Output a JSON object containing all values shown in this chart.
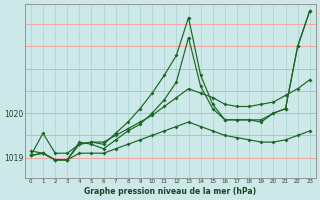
{
  "title": "Graphe pression niveau de la mer (hPa)",
  "bg_color": "#cce8e8",
  "grid_color_v": "#b0d4d4",
  "grid_color_h": "#ff9999",
  "line_color": "#1a6622",
  "xlabel": "Graphe pression niveau de la mer (hPa)",
  "xlim": [
    -0.5,
    23.5
  ],
  "ylim": [
    1018.55,
    1022.45
  ],
  "yticks": [
    1019,
    1020
  ],
  "xticks": [
    0,
    1,
    2,
    3,
    4,
    5,
    6,
    7,
    8,
    9,
    10,
    11,
    12,
    13,
    14,
    15,
    16,
    17,
    18,
    19,
    20,
    21,
    22,
    23
  ],
  "hgrid_vals": [
    1018.5,
    1019.0,
    1019.5,
    1020.0,
    1020.5,
    1021.0,
    1021.5,
    1022.0,
    1022.5
  ],
  "series": [
    [
      1019.05,
      1019.55,
      1019.1,
      1019.1,
      1019.3,
      1019.35,
      1019.35,
      1019.5,
      1019.65,
      1019.8,
      1019.95,
      1020.15,
      1020.35,
      1020.55,
      1020.45,
      1020.35,
      1020.2,
      1020.15,
      1020.15,
      1020.2,
      1020.25,
      1020.4,
      1020.55,
      1020.75
    ],
    [
      1019.05,
      1019.1,
      1018.95,
      1018.95,
      1019.1,
      1019.1,
      1019.1,
      1019.2,
      1019.3,
      1019.4,
      1019.5,
      1019.6,
      1019.7,
      1019.8,
      1019.7,
      1019.6,
      1019.5,
      1019.45,
      1019.4,
      1019.35,
      1019.35,
      1019.4,
      1019.5,
      1019.6
    ],
    [
      1019.05,
      1019.1,
      1018.95,
      1018.95,
      1019.35,
      1019.3,
      1019.2,
      1019.4,
      1019.6,
      1019.75,
      1020.0,
      1020.3,
      1020.7,
      1021.7,
      1020.6,
      1020.1,
      1019.85,
      1019.85,
      1019.85,
      1019.8,
      1020.0,
      1020.1,
      1021.5,
      1022.3
    ],
    [
      1019.15,
      1019.1,
      1018.95,
      1018.95,
      1019.3,
      1019.35,
      1019.3,
      1019.55,
      1019.8,
      1020.1,
      1020.45,
      1020.85,
      1021.3,
      1022.15,
      1020.85,
      1020.2,
      1019.85,
      1019.85,
      1019.85,
      1019.85,
      1020.0,
      1020.1,
      1021.5,
      1022.3
    ]
  ]
}
